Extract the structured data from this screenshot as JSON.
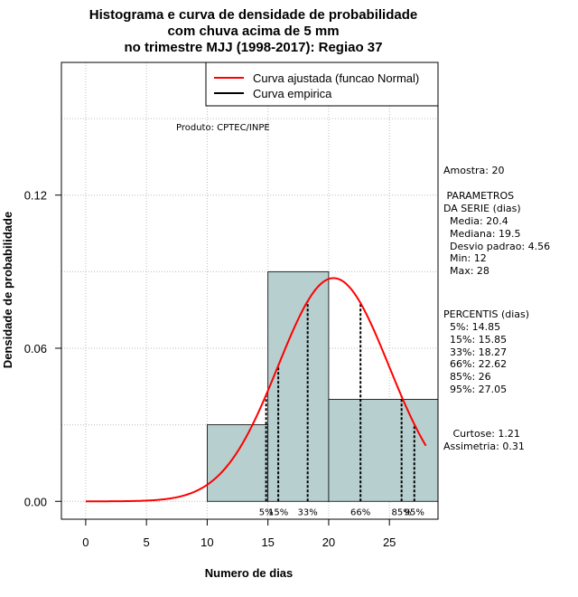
{
  "chart_data": {
    "type": "bar",
    "title_lines": [
      "Histograma e curva de densidade de probabilidade",
      "com chuva acima de 5 mm",
      "no trimestre MJJ (1998-2017): Regiao 37"
    ],
    "xlabel": "Numero de dias",
    "ylabel": "Densidade de probabilidade",
    "xlim": [
      -2,
      29
    ],
    "ylim": [
      -0.007,
      0.172
    ],
    "x_ticks": [
      0,
      5,
      10,
      15,
      20,
      25
    ],
    "x_tick_labels": [
      "0",
      "5",
      "10",
      "15",
      "20",
      "25"
    ],
    "y_ticks": [
      0.0,
      0.06,
      0.12
    ],
    "y_tick_labels": [
      "0.00",
      "0.06",
      "0.12"
    ],
    "grid": true,
    "grid_x": [
      0,
      5,
      10,
      15,
      20,
      25
    ],
    "grid_y": [
      0.0,
      0.03,
      0.06,
      0.09,
      0.12,
      0.15
    ],
    "bar_color": "#b7cfcf",
    "curve_color": "#ff0000",
    "bins": [
      {
        "x0": 10,
        "x1": 15,
        "density": 0.03
      },
      {
        "x0": 15,
        "x1": 20,
        "density": 0.09
      },
      {
        "x0": 20,
        "x1": 29,
        "density": 0.04
      }
    ],
    "normal_curve": {
      "mean": 20.4,
      "sd": 4.56,
      "x_start": 0,
      "x_end": 28
    },
    "percentile_lines": [
      {
        "label": "5%",
        "x": 14.85
      },
      {
        "label": "15%",
        "x": 15.85
      },
      {
        "label": "33%",
        "x": 18.27
      },
      {
        "label": "66%",
        "x": 22.62
      },
      {
        "label": "85%",
        "x": 26
      },
      {
        "label": "95%",
        "x": 27.05
      }
    ],
    "legend": {
      "position": "top-right",
      "entries": [
        {
          "label": "Curva ajustada (funcao Normal)",
          "color": "#ff0000"
        },
        {
          "label": "Curva empirica",
          "color": "#000000"
        }
      ]
    },
    "product_label": "Produto: CPTEC/INPE"
  },
  "side_panel": {
    "amostra": "Amostra: 20",
    "parametros_header": " PARAMETROS\nDA SERIE (dias)",
    "parametros": "  Media: 20.4\n  Mediana: 19.5\n  Desvio padrao: 4.56\n  Min: 12\n  Max: 28",
    "percentis_header": "PERCENTIS (dias)",
    "percentis": "  5%: 14.85\n  15%: 15.85\n  33%: 18.27\n  66%: 22.62\n  85%: 26\n  95%: 27.05",
    "curtose": "   Curtose: 1.21",
    "assimetria": "Assimetria: 0.31"
  }
}
